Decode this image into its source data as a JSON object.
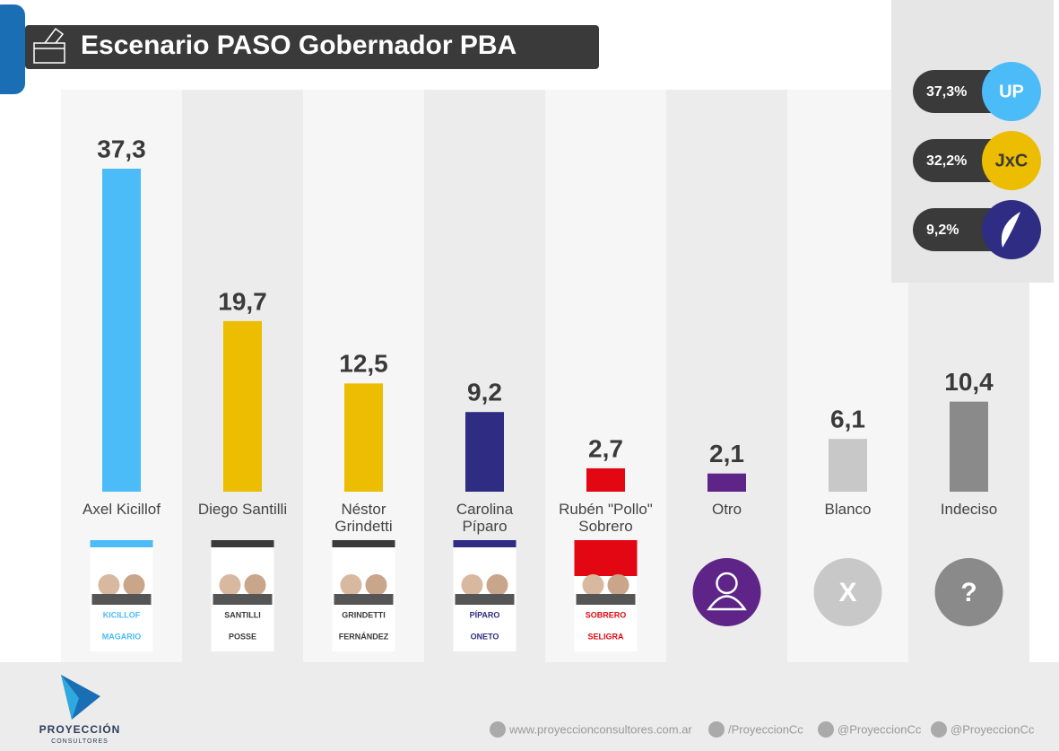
{
  "chart_data": {
    "type": "bar",
    "title": "Escenario PASO Gobernador PBA",
    "categories": [
      "Axel Kicillof",
      "Diego Santilli",
      "Néstor Grindetti",
      "Carolina Píparo",
      "Rubén \"Pollo\" Sobrero",
      "Otro",
      "Blanco",
      "Indeciso"
    ],
    "values": [
      37.3,
      19.7,
      12.5,
      9.2,
      2.7,
      2.1,
      6.1,
      10.4
    ],
    "value_labels": [
      "37,3",
      "19,7",
      "12,5",
      "9,2",
      "2,7",
      "2,1",
      "6,1",
      "10,4"
    ],
    "colors": [
      "#4bbcf7",
      "#ecbd00",
      "#ecbd00",
      "#2e2d83",
      "#e30613",
      "#5e2487",
      "#c8c8c8",
      "#8a8a8a"
    ],
    "legend": {
      "values": [
        37.3,
        32.2,
        9.2
      ],
      "value_labels": [
        "37,3%",
        "32,2%",
        "9,2%"
      ],
      "logos": [
        "UP",
        "JxC",
        null
      ],
      "colors": [
        "#4bbcf7",
        "#ecbd00",
        "#2e2d83"
      ]
    },
    "cards": [
      {
        "top": "KICILLOF",
        "bottom": "MAGARIO",
        "color": "#4bbcf7"
      },
      {
        "top": "SANTILLI",
        "bottom": "POSSE",
        "color": "#3a3a3a"
      },
      {
        "top": "GRINDETTI",
        "bottom": "FERNÁNDEZ",
        "color": "#3a3a3a"
      },
      {
        "top": "PÍPARO",
        "bottom": "ONETO",
        "color": "#2e2d83"
      },
      {
        "top": "SOBRERO",
        "bottom": "SELIGRA",
        "color": "#e30613"
      }
    ],
    "icons": [
      "X",
      "?"
    ]
  },
  "footer": {
    "brand": "PROYECCIÓN",
    "brand_sub": "CONSULTORES",
    "links": [
      "www.proyeccionconsultores.com.ar",
      "/ProyeccionCc",
      "@ProyeccionCc",
      "@ProyeccionCc"
    ]
  }
}
